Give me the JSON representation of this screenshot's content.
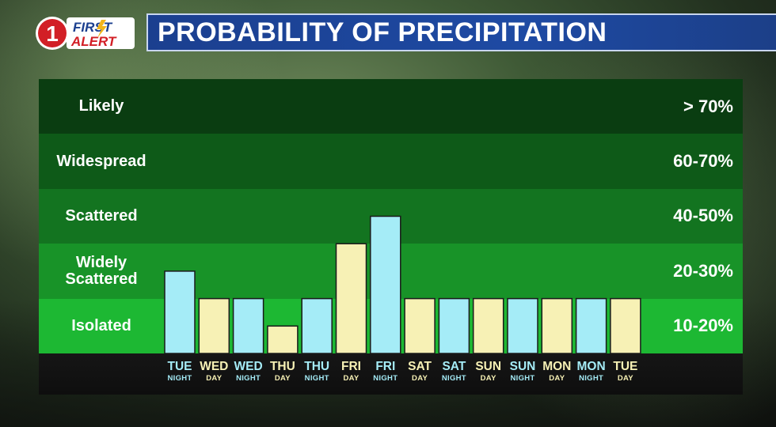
{
  "header": {
    "logo": {
      "line1": "FIRST",
      "line2": "ALERT",
      "number": "1"
    },
    "title": "PROBABILITY OF PRECIPITATION"
  },
  "colors": {
    "night_bar": "#a5ecf7",
    "day_bar": "#f7f1b5",
    "band_likely": "#0a3d11",
    "band_widespread": "#0e5a18",
    "band_scattered": "#137420",
    "band_widely_scattered": "#189328",
    "band_isolated": "#1db833"
  },
  "chart_data": {
    "type": "bar",
    "title": "PROBABILITY OF PRECIPITATION",
    "ylim": [
      0,
      100
    ],
    "bands": [
      {
        "label": "Likely",
        "range": "> 70%",
        "from": 70,
        "to": 100
      },
      {
        "label": "Widespread",
        "range": "60-70%",
        "from": 60,
        "to": 70
      },
      {
        "label": "Scattered",
        "range": "40-50%",
        "from": 40,
        "to": 60
      },
      {
        "label": "Widely Scattered",
        "range": "20-30%",
        "from": 20,
        "to": 40
      },
      {
        "label": "Isolated",
        "range": "10-20%",
        "from": 0,
        "to": 20
      }
    ],
    "categories": [
      {
        "day": "TUE",
        "period": "NIGHT",
        "value": 30
      },
      {
        "day": "WED",
        "period": "DAY",
        "value": 20
      },
      {
        "day": "WED",
        "period": "NIGHT",
        "value": 20
      },
      {
        "day": "THU",
        "period": "DAY",
        "value": 10
      },
      {
        "day": "THU",
        "period": "NIGHT",
        "value": 20
      },
      {
        "day": "FRI",
        "period": "DAY",
        "value": 40
      },
      {
        "day": "FRI",
        "period": "NIGHT",
        "value": 50
      },
      {
        "day": "SAT",
        "period": "DAY",
        "value": 20
      },
      {
        "day": "SAT",
        "period": "NIGHT",
        "value": 20
      },
      {
        "day": "SUN",
        "period": "DAY",
        "value": 20
      },
      {
        "day": "SUN",
        "period": "NIGHT",
        "value": 20
      },
      {
        "day": "MON",
        "period": "DAY",
        "value": 20
      },
      {
        "day": "MON",
        "period": "NIGHT",
        "value": 20
      },
      {
        "day": "TUE",
        "period": "DAY",
        "value": 20
      }
    ]
  }
}
